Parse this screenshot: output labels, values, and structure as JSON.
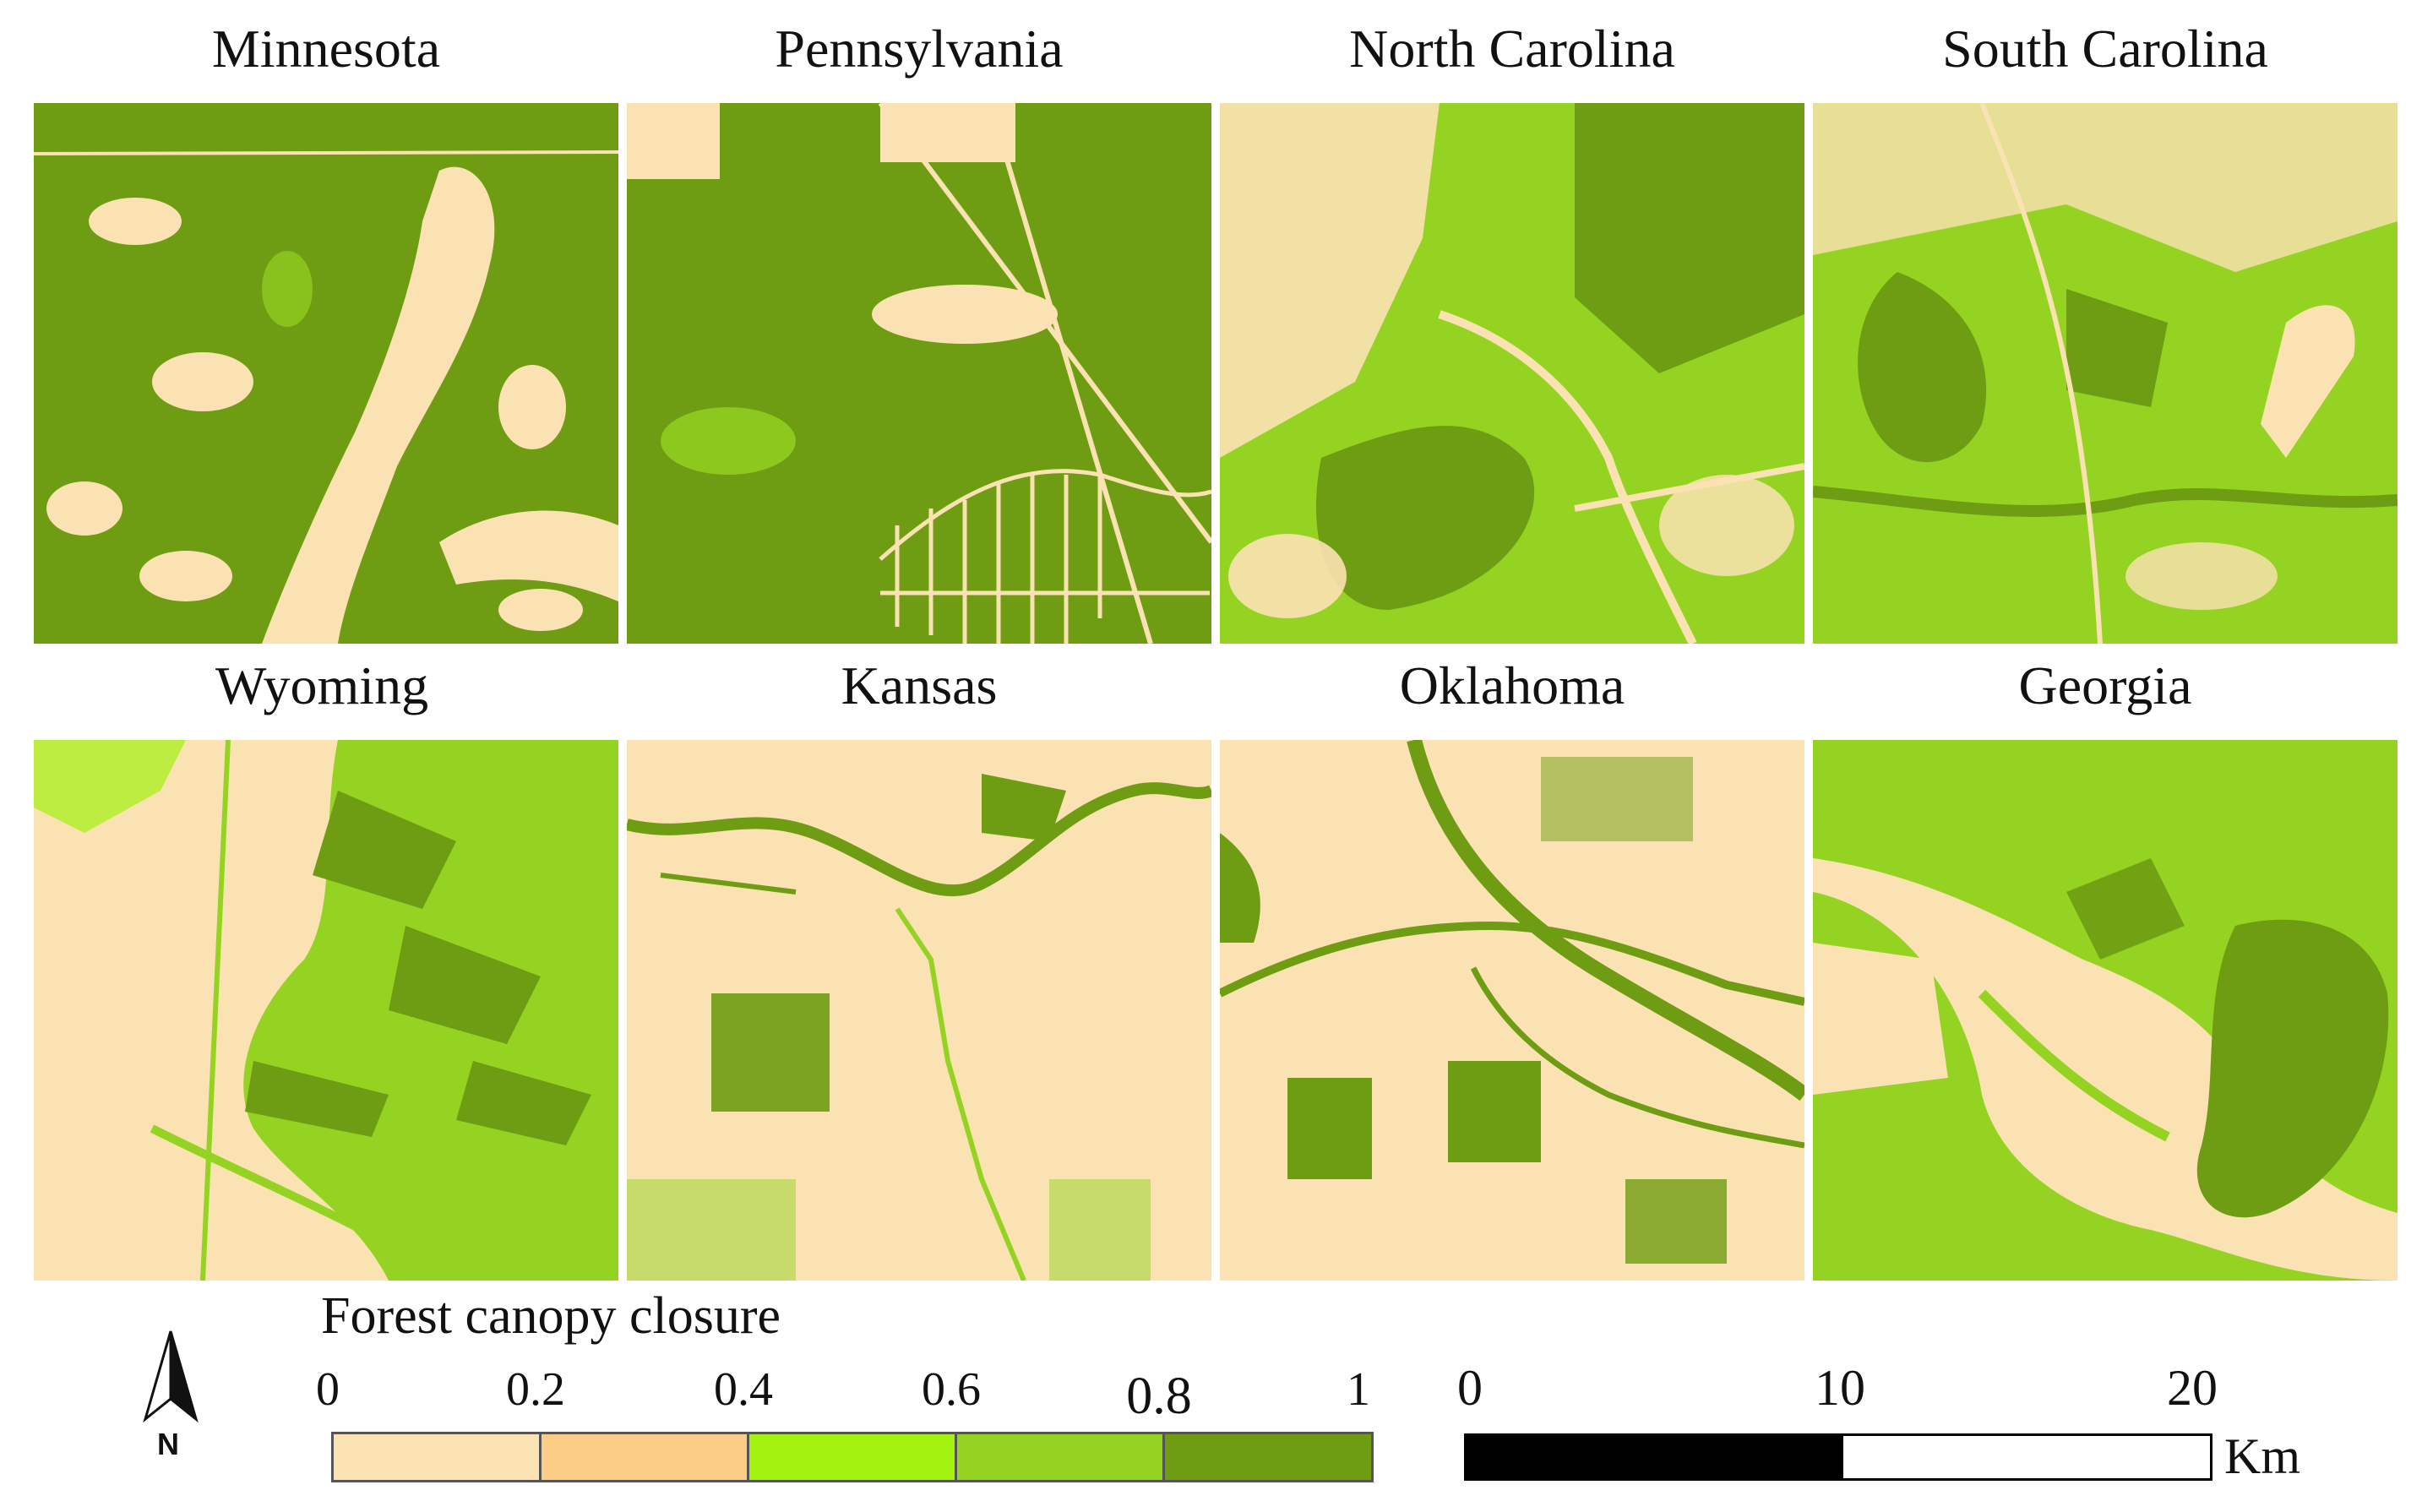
{
  "colors": {
    "class_0_0.2": "#fbe2b3",
    "class_0.2_0.4": "#fbcd87",
    "class_0.4_0.6": "#a3f20f",
    "class_0.6_0.8": "#94d321",
    "class_0.8_1": "#6e9c12"
  },
  "panels": [
    {
      "label": "Minnesota"
    },
    {
      "label": "Pennsylvania"
    },
    {
      "label": "North Carolina"
    },
    {
      "label": "South Carolina"
    },
    {
      "label": "Wyoming"
    },
    {
      "label": "Kansas"
    },
    {
      "label": "Oklahoma"
    },
    {
      "label": "Georgia"
    }
  ],
  "legend": {
    "title": "Forest canopy closure",
    "ticks": [
      "0",
      "0.2",
      "0.4",
      "0.6",
      "0.8",
      "1"
    ]
  },
  "scale_bar": {
    "ticks": [
      "0",
      "10",
      "20"
    ],
    "unit": "Km"
  },
  "north_arrow": {
    "label": "N",
    "icon": "north-arrow-icon"
  }
}
